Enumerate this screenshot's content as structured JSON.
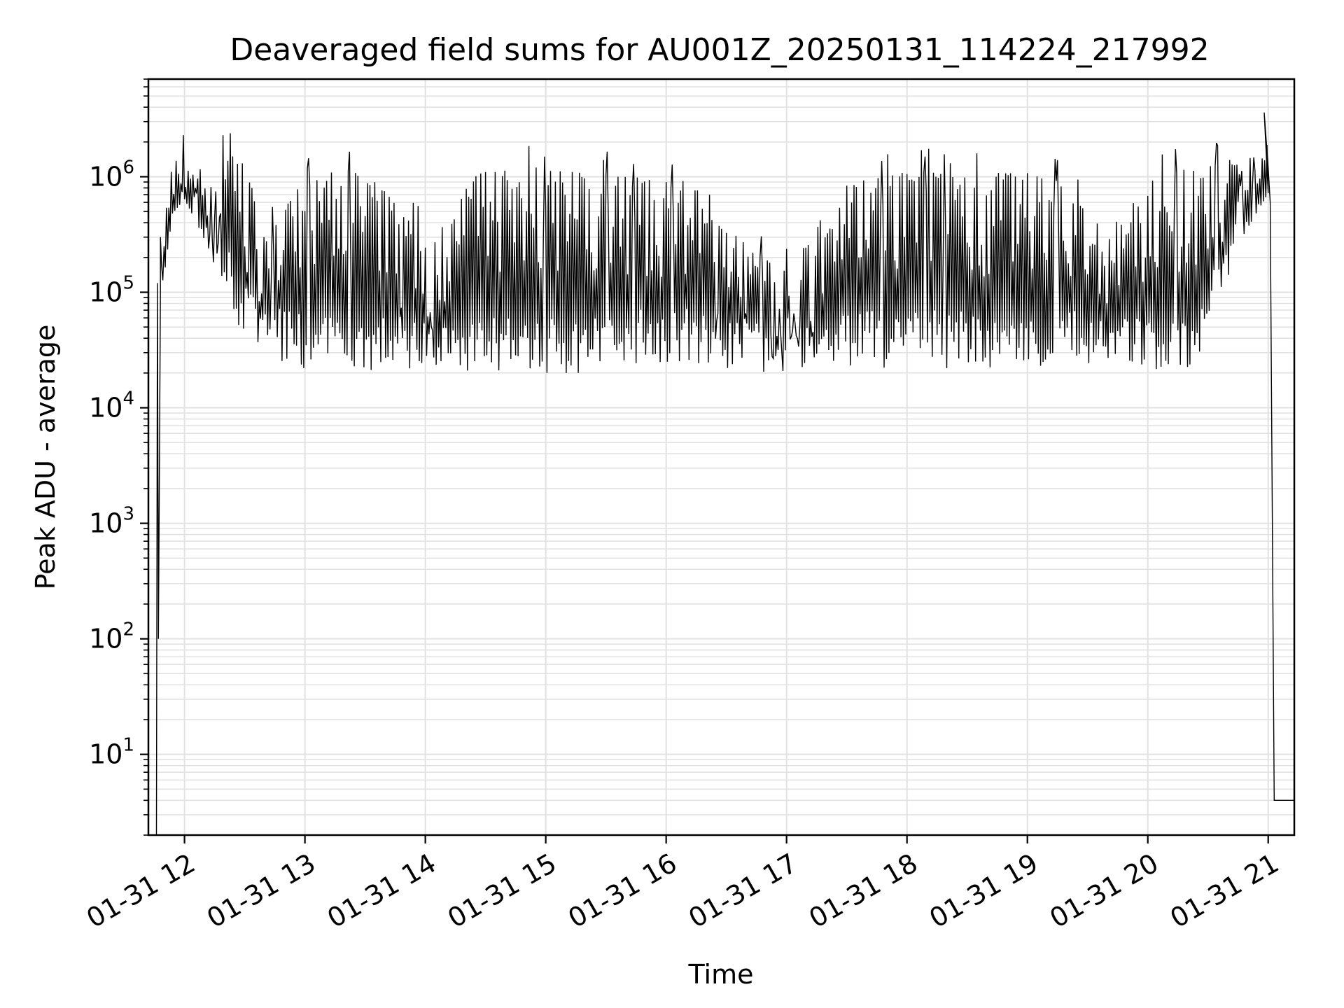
{
  "chart_data": {
    "type": "line",
    "title": "Deaveraged field sums for AU001Z_20250131_114224_217992",
    "xlabel": "Time",
    "ylabel": "Peak ADU - average",
    "yscale": "log",
    "xlim": [
      "2025-01-31 11:42",
      "2025-01-31 21:13"
    ],
    "ylim": [
      2,
      7000000
    ],
    "x_ticks": [
      "01-31 12",
      "01-31 13",
      "01-31 14",
      "01-31 15",
      "01-31 16",
      "01-31 17",
      "01-31 18",
      "01-31 19",
      "01-31 20",
      "01-31 21"
    ],
    "y_ticks": [
      {
        "base": "10",
        "exp": "1"
      },
      {
        "base": "10",
        "exp": "2"
      },
      {
        "base": "10",
        "exp": "3"
      },
      {
        "base": "10",
        "exp": "4"
      },
      {
        "base": "10",
        "exp": "5"
      },
      {
        "base": "10",
        "exp": "6"
      }
    ],
    "grid": true,
    "line_color": "#000000",
    "series": [
      {
        "envelope": {
          "x": [
            "11:48",
            "11:54",
            "12:00",
            "12:06",
            "12:12",
            "12:18",
            "12:24",
            "12:30",
            "12:36",
            "12:42",
            "12:48",
            "12:54",
            "13:00",
            "13:12",
            "13:24",
            "13:36",
            "13:48",
            "14:00",
            "14:12",
            "14:24",
            "14:36",
            "14:48",
            "15:00",
            "15:12",
            "15:24",
            "15:36",
            "15:48",
            "16:00",
            "16:12",
            "16:24",
            "16:36",
            "16:48",
            "17:00",
            "17:12",
            "17:24",
            "17:36",
            "17:48",
            "18:00",
            "18:12",
            "18:24",
            "18:36",
            "18:48",
            "19:00",
            "19:12",
            "19:24",
            "19:36",
            "19:48",
            "20:00",
            "20:12",
            "20:24",
            "20:36",
            "20:48",
            "21:00"
          ],
          "upper": [
            300000,
            1000000,
            1100000,
            900000,
            700000,
            1600000,
            1500000,
            1300000,
            700000,
            400000,
            450000,
            700000,
            1200000,
            1200000,
            1100000,
            900000,
            500000,
            300000,
            400000,
            1100000,
            1100000,
            1200000,
            1200000,
            1100000,
            1100000,
            1000000,
            1000000,
            900000,
            700000,
            400000,
            300000,
            200000,
            150000,
            300000,
            700000,
            1000000,
            1100000,
            1100000,
            1100000,
            1000000,
            1000000,
            1100000,
            1100000,
            1000000,
            700000,
            500000,
            400000,
            1100000,
            1100000,
            1200000,
            1300000,
            1600000,
            1300000
          ],
          "lower": [
            100000,
            600000,
            800000,
            500000,
            300000,
            150000,
            60000,
            40000,
            30000,
            25000,
            25000,
            22000,
            20000,
            20000,
            20000,
            20000,
            20000,
            20000,
            19000,
            20000,
            20000,
            20000,
            18000,
            20000,
            20000,
            22000,
            24000,
            25000,
            24000,
            22000,
            20000,
            20000,
            21000,
            22000,
            22000,
            22000,
            22000,
            22000,
            22000,
            22000,
            22000,
            22000,
            20000,
            22000,
            22000,
            22000,
            22000,
            20000,
            20000,
            22000,
            80000,
            400000,
            900000
          ]
        },
        "key_points": [
          {
            "x": "11:46",
            "y": 2
          },
          {
            "x": "11:46:30",
            "y": 120000
          },
          {
            "x": "11:47",
            "y": 100
          },
          {
            "x": "11:48",
            "y": 100000
          },
          {
            "x": "20:58",
            "y": 3600000
          },
          {
            "x": "21:00",
            "y": 1200000
          },
          {
            "x": "21:01",
            "y": 600000
          },
          {
            "x": "21:03",
            "y": 4
          },
          {
            "x": "21:13",
            "y": 4
          }
        ]
      }
    ]
  }
}
